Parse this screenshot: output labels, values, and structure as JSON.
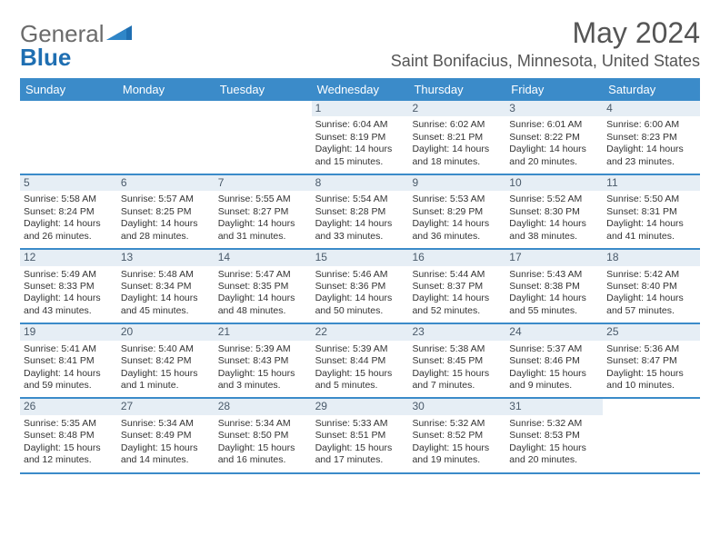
{
  "brand": {
    "part1": "General",
    "part2": "Blue"
  },
  "colors": {
    "header_bg": "#3b8bc9",
    "header_text": "#ffffff",
    "daynum_bg": "#e6eef5",
    "daynum_text": "#4a5a6a",
    "rule": "#3b8bc9",
    "text": "#333333",
    "title_text": "#555555",
    "logo_gray": "#6b6b6b",
    "logo_blue": "#1f6fb2",
    "page_bg": "#ffffff"
  },
  "typography": {
    "month_title_fontsize": 32,
    "location_fontsize": 18,
    "weekday_fontsize": 13,
    "body_fontsize": 10.5,
    "daynum_fontsize": 12,
    "logo_fontsize": 26
  },
  "calendar": {
    "month_title": "May 2024",
    "location": "Saint Bonifacius, Minnesota, United States",
    "weekdays": [
      "Sunday",
      "Monday",
      "Tuesday",
      "Wednesday",
      "Thursday",
      "Friday",
      "Saturday"
    ],
    "weeks": [
      [
        null,
        null,
        null,
        {
          "n": "1",
          "sunrise": "Sunrise: 6:04 AM",
          "sunset": "Sunset: 8:19 PM",
          "d1": "Daylight: 14 hours",
          "d2": "and 15 minutes."
        },
        {
          "n": "2",
          "sunrise": "Sunrise: 6:02 AM",
          "sunset": "Sunset: 8:21 PM",
          "d1": "Daylight: 14 hours",
          "d2": "and 18 minutes."
        },
        {
          "n": "3",
          "sunrise": "Sunrise: 6:01 AM",
          "sunset": "Sunset: 8:22 PM",
          "d1": "Daylight: 14 hours",
          "d2": "and 20 minutes."
        },
        {
          "n": "4",
          "sunrise": "Sunrise: 6:00 AM",
          "sunset": "Sunset: 8:23 PM",
          "d1": "Daylight: 14 hours",
          "d2": "and 23 minutes."
        }
      ],
      [
        {
          "n": "5",
          "sunrise": "Sunrise: 5:58 AM",
          "sunset": "Sunset: 8:24 PM",
          "d1": "Daylight: 14 hours",
          "d2": "and 26 minutes."
        },
        {
          "n": "6",
          "sunrise": "Sunrise: 5:57 AM",
          "sunset": "Sunset: 8:25 PM",
          "d1": "Daylight: 14 hours",
          "d2": "and 28 minutes."
        },
        {
          "n": "7",
          "sunrise": "Sunrise: 5:55 AM",
          "sunset": "Sunset: 8:27 PM",
          "d1": "Daylight: 14 hours",
          "d2": "and 31 minutes."
        },
        {
          "n": "8",
          "sunrise": "Sunrise: 5:54 AM",
          "sunset": "Sunset: 8:28 PM",
          "d1": "Daylight: 14 hours",
          "d2": "and 33 minutes."
        },
        {
          "n": "9",
          "sunrise": "Sunrise: 5:53 AM",
          "sunset": "Sunset: 8:29 PM",
          "d1": "Daylight: 14 hours",
          "d2": "and 36 minutes."
        },
        {
          "n": "10",
          "sunrise": "Sunrise: 5:52 AM",
          "sunset": "Sunset: 8:30 PM",
          "d1": "Daylight: 14 hours",
          "d2": "and 38 minutes."
        },
        {
          "n": "11",
          "sunrise": "Sunrise: 5:50 AM",
          "sunset": "Sunset: 8:31 PM",
          "d1": "Daylight: 14 hours",
          "d2": "and 41 minutes."
        }
      ],
      [
        {
          "n": "12",
          "sunrise": "Sunrise: 5:49 AM",
          "sunset": "Sunset: 8:33 PM",
          "d1": "Daylight: 14 hours",
          "d2": "and 43 minutes."
        },
        {
          "n": "13",
          "sunrise": "Sunrise: 5:48 AM",
          "sunset": "Sunset: 8:34 PM",
          "d1": "Daylight: 14 hours",
          "d2": "and 45 minutes."
        },
        {
          "n": "14",
          "sunrise": "Sunrise: 5:47 AM",
          "sunset": "Sunset: 8:35 PM",
          "d1": "Daylight: 14 hours",
          "d2": "and 48 minutes."
        },
        {
          "n": "15",
          "sunrise": "Sunrise: 5:46 AM",
          "sunset": "Sunset: 8:36 PM",
          "d1": "Daylight: 14 hours",
          "d2": "and 50 minutes."
        },
        {
          "n": "16",
          "sunrise": "Sunrise: 5:44 AM",
          "sunset": "Sunset: 8:37 PM",
          "d1": "Daylight: 14 hours",
          "d2": "and 52 minutes."
        },
        {
          "n": "17",
          "sunrise": "Sunrise: 5:43 AM",
          "sunset": "Sunset: 8:38 PM",
          "d1": "Daylight: 14 hours",
          "d2": "and 55 minutes."
        },
        {
          "n": "18",
          "sunrise": "Sunrise: 5:42 AM",
          "sunset": "Sunset: 8:40 PM",
          "d1": "Daylight: 14 hours",
          "d2": "and 57 minutes."
        }
      ],
      [
        {
          "n": "19",
          "sunrise": "Sunrise: 5:41 AM",
          "sunset": "Sunset: 8:41 PM",
          "d1": "Daylight: 14 hours",
          "d2": "and 59 minutes."
        },
        {
          "n": "20",
          "sunrise": "Sunrise: 5:40 AM",
          "sunset": "Sunset: 8:42 PM",
          "d1": "Daylight: 15 hours",
          "d2": "and 1 minute."
        },
        {
          "n": "21",
          "sunrise": "Sunrise: 5:39 AM",
          "sunset": "Sunset: 8:43 PM",
          "d1": "Daylight: 15 hours",
          "d2": "and 3 minutes."
        },
        {
          "n": "22",
          "sunrise": "Sunrise: 5:39 AM",
          "sunset": "Sunset: 8:44 PM",
          "d1": "Daylight: 15 hours",
          "d2": "and 5 minutes."
        },
        {
          "n": "23",
          "sunrise": "Sunrise: 5:38 AM",
          "sunset": "Sunset: 8:45 PM",
          "d1": "Daylight: 15 hours",
          "d2": "and 7 minutes."
        },
        {
          "n": "24",
          "sunrise": "Sunrise: 5:37 AM",
          "sunset": "Sunset: 8:46 PM",
          "d1": "Daylight: 15 hours",
          "d2": "and 9 minutes."
        },
        {
          "n": "25",
          "sunrise": "Sunrise: 5:36 AM",
          "sunset": "Sunset: 8:47 PM",
          "d1": "Daylight: 15 hours",
          "d2": "and 10 minutes."
        }
      ],
      [
        {
          "n": "26",
          "sunrise": "Sunrise: 5:35 AM",
          "sunset": "Sunset: 8:48 PM",
          "d1": "Daylight: 15 hours",
          "d2": "and 12 minutes."
        },
        {
          "n": "27",
          "sunrise": "Sunrise: 5:34 AM",
          "sunset": "Sunset: 8:49 PM",
          "d1": "Daylight: 15 hours",
          "d2": "and 14 minutes."
        },
        {
          "n": "28",
          "sunrise": "Sunrise: 5:34 AM",
          "sunset": "Sunset: 8:50 PM",
          "d1": "Daylight: 15 hours",
          "d2": "and 16 minutes."
        },
        {
          "n": "29",
          "sunrise": "Sunrise: 5:33 AM",
          "sunset": "Sunset: 8:51 PM",
          "d1": "Daylight: 15 hours",
          "d2": "and 17 minutes."
        },
        {
          "n": "30",
          "sunrise": "Sunrise: 5:32 AM",
          "sunset": "Sunset: 8:52 PM",
          "d1": "Daylight: 15 hours",
          "d2": "and 19 minutes."
        },
        {
          "n": "31",
          "sunrise": "Sunrise: 5:32 AM",
          "sunset": "Sunset: 8:53 PM",
          "d1": "Daylight: 15 hours",
          "d2": "and 20 minutes."
        },
        null
      ]
    ]
  }
}
